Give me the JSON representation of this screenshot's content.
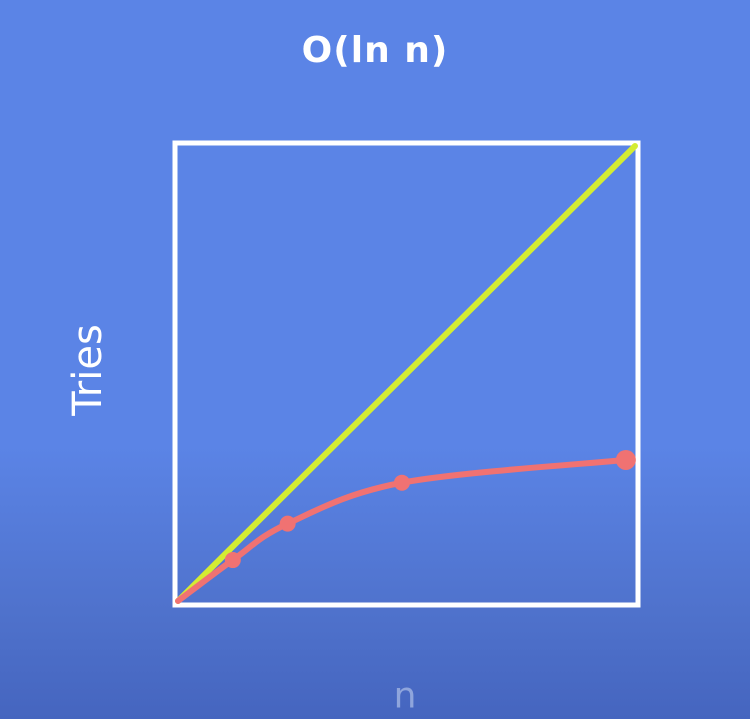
{
  "chart_data": {
    "type": "line",
    "title": "O(ln n)",
    "xlabel": "n",
    "ylabel": "Tries",
    "xlim": [
      0,
      10
    ],
    "ylim": [
      0,
      10
    ],
    "grid": false,
    "series": [
      {
        "color": "#d4ec32",
        "markers": false,
        "x": [
          0,
          10
        ],
        "y": [
          0,
          10
        ]
      },
      {
        "color": "#f07272",
        "markers": true,
        "x": [
          0,
          1.2,
          2.4,
          4.9,
          9.8
        ],
        "y": [
          0,
          0.9,
          1.7,
          2.6,
          3.1
        ]
      }
    ]
  }
}
